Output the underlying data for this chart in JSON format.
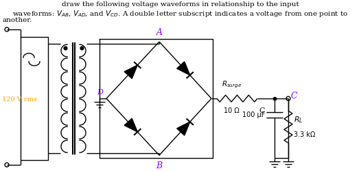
{
  "title_line1": "draw the following voltage waveforms in relationship to the input",
  "title_line2": "waveforms: $V_{AB}$, $V_{AD}$, and $V_{CD}$. A double letter subscript indicates a voltage from one point to",
  "title_line3": "another.",
  "voltage_label": "120 V rms",
  "voltage_color": "#FFA500",
  "node_A": "A",
  "node_B": "B",
  "node_C": "C",
  "node_D": "D",
  "node_color": "#8B00FF",
  "resistor_label": "$R_{surge}$",
  "resistor_value": "10 Ω",
  "capacitor_label": "C",
  "capacitor_value": "100 μF",
  "load_label": "$R_L$",
  "load_value": "3.3 kΩ",
  "bg_color": "#ffffff",
  "line_color": "#000000"
}
